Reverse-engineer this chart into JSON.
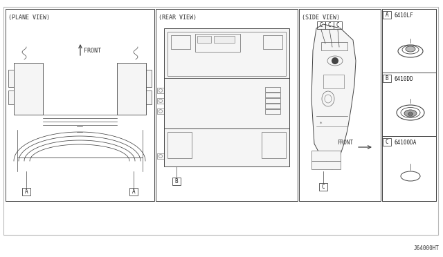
{
  "bg_color": "#ffffff",
  "line_color": "#444444",
  "thin_color": "#666666",
  "fill_color": "#f5f5f5",
  "panel_bg": "#fafafa",
  "plane_view_label": "(PLANE VIEW)",
  "rear_view_label": "(REAR VIEW)",
  "side_view_label": "(SIDE VIEW)",
  "front_label": "FRONT",
  "front_label2": "FRONT",
  "part_a_code": "6410LF",
  "part_b_code": "6410DD",
  "part_c_code": "64100DA",
  "diagram_code": "J64000HT",
  "outer_border": [
    5,
    10,
    628,
    330
  ],
  "pv_panel": [
    8,
    13,
    215,
    278
  ],
  "rv_panel": [
    225,
    13,
    205,
    278
  ],
  "sv_panel": [
    432,
    13,
    118,
    278
  ],
  "leg_panel": [
    552,
    13,
    78,
    278
  ]
}
